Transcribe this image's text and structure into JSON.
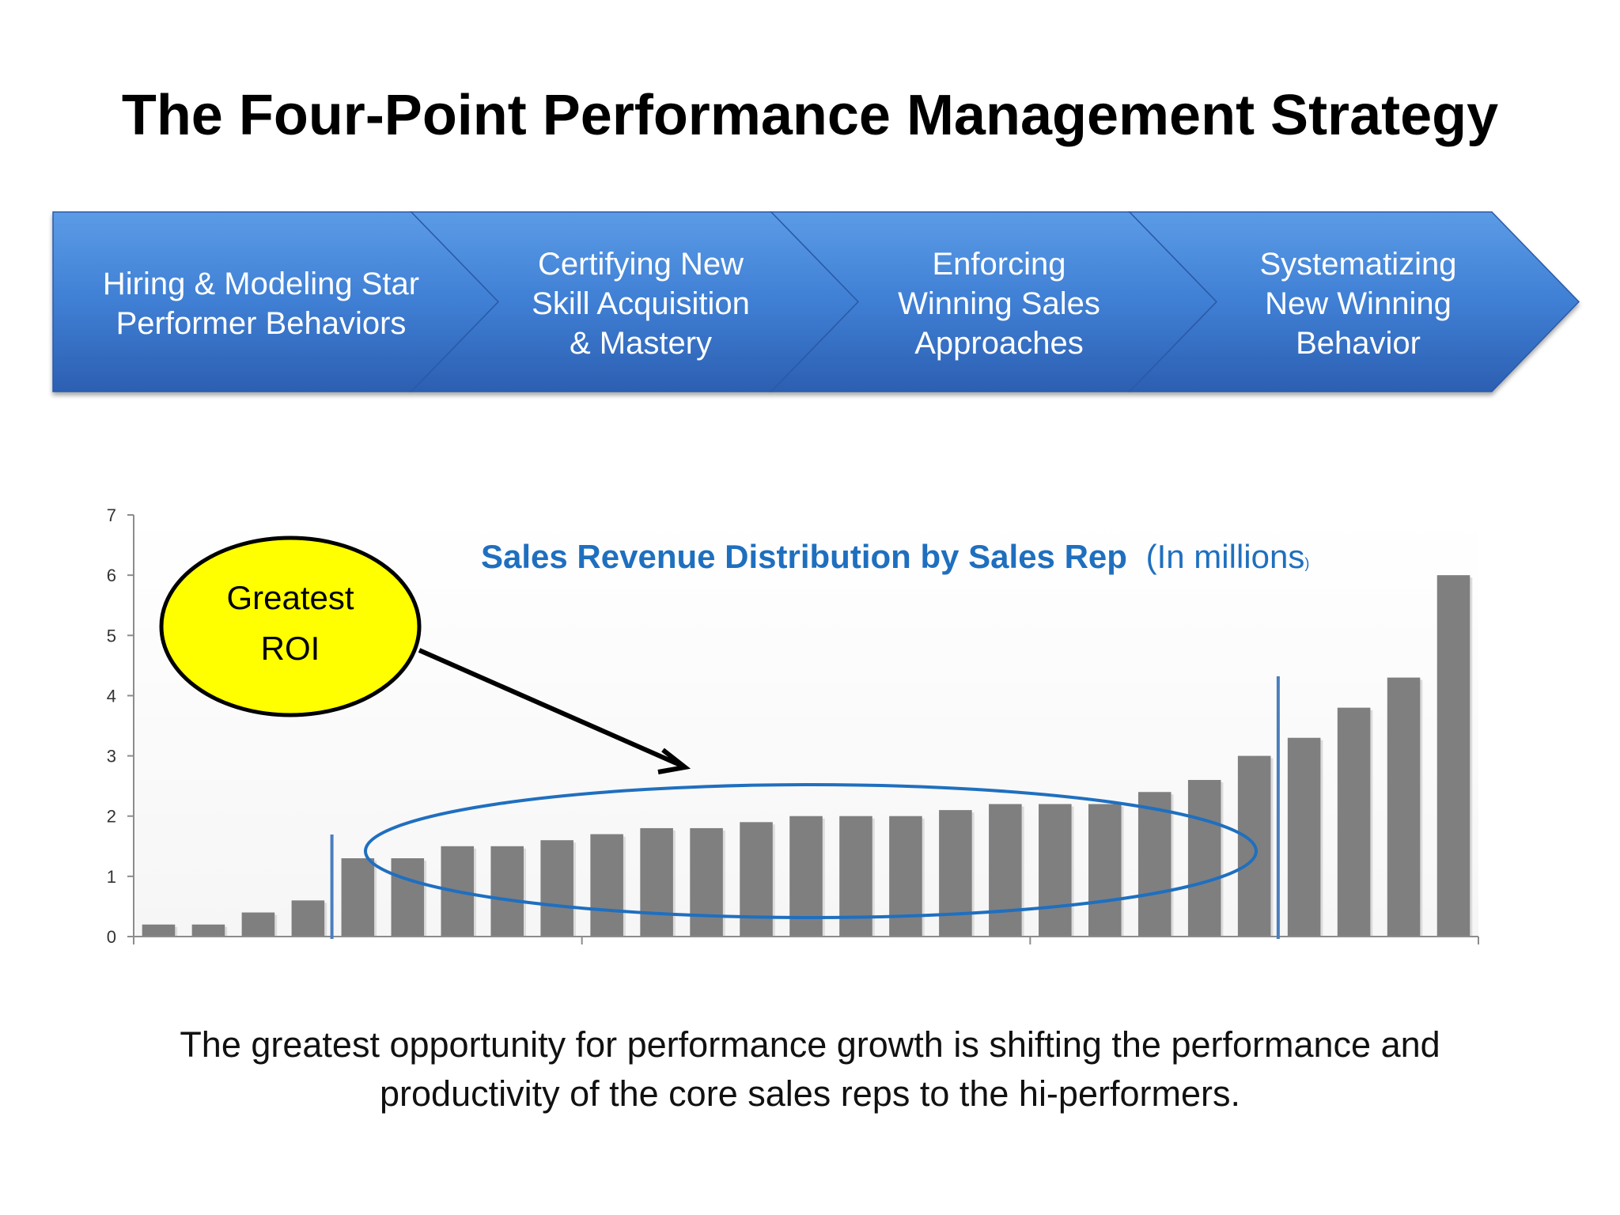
{
  "slide": {
    "title": "The Four-Point Performance Management Strategy",
    "bottom_text": "The greatest opportunity for performance growth is shifting the performance and productivity of the core sales reps to the hi-performers."
  },
  "process": {
    "steps": [
      {
        "lines": [
          "Hiring & Modeling Star",
          "Performer Behaviors"
        ]
      },
      {
        "lines": [
          "Certifying New",
          "Skill Acquisition",
          "& Mastery"
        ]
      },
      {
        "lines": [
          "Enforcing",
          "Winning Sales",
          "Approaches"
        ]
      },
      {
        "lines": [
          "Systematizing",
          "New Winning",
          "Behavior"
        ]
      }
    ],
    "colors": {
      "top": "#5b9be6",
      "mid": "#3f7fd4",
      "bottom": "#2f64b8",
      "text": "#ffffff"
    }
  },
  "callout": {
    "lines": [
      "Greatest",
      "ROI"
    ],
    "fill": "#ffff00"
  },
  "chart_data": {
    "type": "bar",
    "title": "Sales Revenue Distribution by Sales Rep",
    "subtitle": "(In millions",
    "subtitle_suffix": ")",
    "ylim": [
      0,
      7
    ],
    "yticks": [
      0,
      1,
      2,
      3,
      4,
      5,
      6,
      7
    ],
    "values": [
      0.2,
      0.2,
      0.4,
      0.6,
      1.3,
      1.3,
      1.5,
      1.5,
      1.6,
      1.7,
      1.8,
      1.8,
      1.9,
      2.0,
      2.0,
      2.0,
      2.1,
      2.2,
      2.2,
      2.2,
      2.4,
      2.6,
      3.0,
      3.3,
      3.8,
      4.3,
      6.0
    ],
    "bar_color": "#7f7f80",
    "title_color": "#1f6fbf",
    "separator_color": "#4a7ebf",
    "separators_after_index": [
      3,
      22
    ]
  }
}
